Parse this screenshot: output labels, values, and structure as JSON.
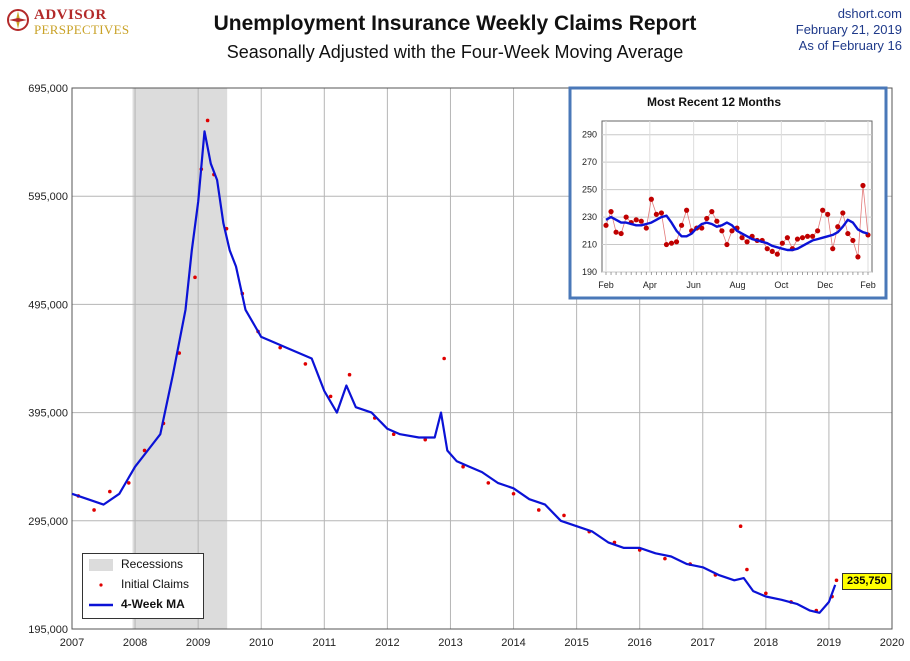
{
  "header": {
    "logo_line1": "ADVISOR",
    "logo_line2": "PERSPECTIVES",
    "title": "Unemployment Insurance Weekly Claims Report",
    "subtitle": "Seasonally Adjusted with the Four-Week Moving Average",
    "source": "dshort.com",
    "date1": "February 21, 2019",
    "date2": "As of February 16"
  },
  "legend": {
    "recessions": "Recessions",
    "claims": "Initial Claims",
    "ma": "4-Week MA"
  },
  "callout": "235,750",
  "colors": {
    "ma": "#0b12d6",
    "claims": "#e00000",
    "recession": "#dcdcdc",
    "inset_border": "#4a78b8",
    "inset_claims": "#c00000"
  },
  "chart_data": [
    {
      "type": "line",
      "title": "Unemployment Insurance Weekly Claims Report",
      "subtitle": "Seasonally Adjusted with the Four-Week Moving Average",
      "xlabel": "",
      "ylabel": "",
      "x_ticks": [
        "2007",
        "2008",
        "2009",
        "2010",
        "2011",
        "2012",
        "2013",
        "2014",
        "2015",
        "2016",
        "2017",
        "2018",
        "2019",
        "2020"
      ],
      "y_ticks": [
        "195,000",
        "295,000",
        "395,000",
        "495,000",
        "595,000",
        "695,000"
      ],
      "xlim": [
        2007,
        2020
      ],
      "ylim": [
        195000,
        695000
      ],
      "grid": true,
      "legend_position": "bottom-left",
      "recessions": [
        [
          2007.96,
          2009.46
        ]
      ],
      "series": [
        {
          "name": "4-Week MA",
          "x": [
            2007.0,
            2007.25,
            2007.5,
            2007.75,
            2008.0,
            2008.2,
            2008.4,
            2008.6,
            2008.8,
            2008.9,
            2009.0,
            2009.1,
            2009.2,
            2009.3,
            2009.4,
            2009.5,
            2009.6,
            2009.75,
            2009.9,
            2010.0,
            2010.2,
            2010.4,
            2010.6,
            2010.8,
            2011.0,
            2011.2,
            2011.35,
            2011.5,
            2011.75,
            2012.0,
            2012.2,
            2012.5,
            2012.75,
            2012.85,
            2012.95,
            2013.1,
            2013.3,
            2013.5,
            2013.75,
            2014.0,
            2014.25,
            2014.5,
            2014.75,
            2015.0,
            2015.25,
            2015.5,
            2015.75,
            2016.0,
            2016.25,
            2016.5,
            2016.75,
            2017.0,
            2017.25,
            2017.5,
            2017.65,
            2017.8,
            2018.0,
            2018.25,
            2018.5,
            2018.7,
            2018.85,
            2019.0,
            2019.1
          ],
          "values": [
            320000,
            315000,
            310000,
            320000,
            345000,
            360000,
            375000,
            430000,
            490000,
            545000,
            590000,
            655000,
            625000,
            610000,
            570000,
            545000,
            530000,
            490000,
            475000,
            465000,
            460000,
            455000,
            450000,
            445000,
            415000,
            395000,
            420000,
            400000,
            395000,
            380000,
            375000,
            372000,
            372000,
            395000,
            360000,
            350000,
            345000,
            340000,
            330000,
            325000,
            315000,
            310000,
            295000,
            290000,
            285000,
            275000,
            270000,
            270000,
            265000,
            262000,
            255000,
            252000,
            245000,
            240000,
            242000,
            230000,
            225000,
            222000,
            218000,
            212000,
            210000,
            220000,
            235750
          ]
        },
        {
          "name": "Initial Claims",
          "x": [
            2007.1,
            2007.35,
            2007.6,
            2007.9,
            2008.15,
            2008.45,
            2008.7,
            2008.95,
            2009.05,
            2009.15,
            2009.25,
            2009.45,
            2009.7,
            2009.95,
            2010.3,
            2010.7,
            2011.1,
            2011.4,
            2011.8,
            2012.1,
            2012.6,
            2012.9,
            2013.2,
            2013.6,
            2014.0,
            2014.4,
            2014.8,
            2015.2,
            2015.6,
            2016.0,
            2016.4,
            2016.8,
            2017.2,
            2017.6,
            2017.7,
            2018.0,
            2018.4,
            2018.8,
            2019.05,
            2019.12
          ],
          "values": [
            318000,
            305000,
            322000,
            330000,
            360000,
            385000,
            450000,
            520000,
            620000,
            665000,
            615000,
            565000,
            505000,
            470000,
            455000,
            440000,
            410000,
            430000,
            390000,
            375000,
            370000,
            445000,
            345000,
            330000,
            320000,
            305000,
            300000,
            285000,
            275000,
            268000,
            260000,
            255000,
            245000,
            290000,
            250000,
            228000,
            220000,
            212000,
            225000,
            240000
          ]
        }
      ]
    },
    {
      "type": "line",
      "title": "Most Recent 12 Months",
      "x_ticks": [
        "Feb",
        "Apr",
        "Jun",
        "Aug",
        "Oct",
        "Dec",
        "Feb"
      ],
      "y_ticks": [
        "190",
        "210",
        "230",
        "250",
        "270",
        "290"
      ],
      "ylim": [
        190,
        300
      ],
      "grid": true,
      "series": [
        {
          "name": "4-Week MA",
          "x": [
            0,
            1,
            2,
            3,
            4,
            5,
            6,
            7,
            8,
            9,
            10,
            11,
            12,
            13,
            14,
            15,
            16,
            17,
            18,
            19,
            20,
            21,
            22,
            23,
            24,
            25,
            26,
            27,
            28,
            29,
            30,
            31,
            32,
            33,
            34,
            35,
            36,
            37,
            38,
            39,
            40,
            41,
            42,
            43,
            44,
            45,
            46,
            47,
            48,
            49,
            50,
            51,
            52
          ],
          "values": [
            228,
            230,
            228,
            226,
            226,
            225,
            224,
            224,
            225,
            226,
            228,
            230,
            231,
            226,
            220,
            216,
            216,
            218,
            222,
            225,
            226,
            225,
            223,
            224,
            226,
            224,
            220,
            218,
            216,
            214,
            213,
            212,
            211,
            209,
            208,
            207,
            206,
            206,
            207,
            209,
            211,
            213,
            214,
            215,
            216,
            217,
            219,
            223,
            228,
            226,
            221,
            219,
            218
          ]
        },
        {
          "name": "Initial Claims",
          "x": [
            0,
            1,
            2,
            3,
            4,
            5,
            6,
            7,
            8,
            9,
            10,
            11,
            12,
            13,
            14,
            15,
            16,
            17,
            18,
            19,
            20,
            21,
            22,
            23,
            24,
            25,
            26,
            27,
            28,
            29,
            30,
            31,
            32,
            33,
            34,
            35,
            36,
            37,
            38,
            39,
            40,
            41,
            42,
            43,
            44,
            45,
            46,
            47,
            48,
            49,
            50,
            51,
            52
          ],
          "values": [
            224,
            234,
            219,
            218,
            230,
            226,
            228,
            227,
            222,
            243,
            232,
            233,
            210,
            211,
            212,
            224,
            235,
            220,
            222,
            222,
            229,
            234,
            227,
            220,
            210,
            220,
            222,
            215,
            212,
            216,
            213,
            213,
            207,
            205,
            203,
            211,
            215,
            207,
            214,
            215,
            216,
            216,
            220,
            235,
            232,
            207,
            223,
            233,
            218,
            213,
            201,
            253,
            217
          ]
        }
      ]
    }
  ]
}
